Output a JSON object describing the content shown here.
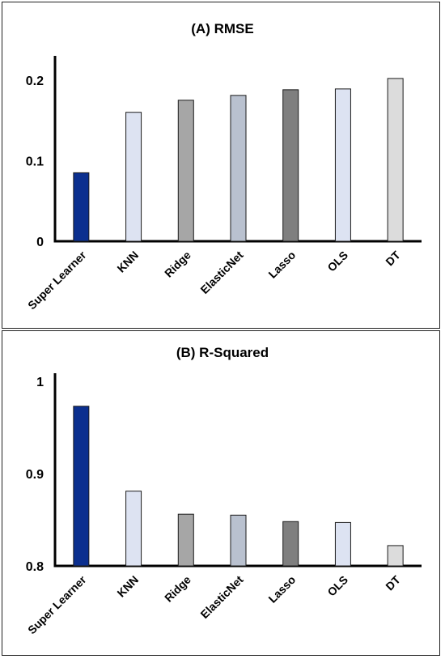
{
  "chart_data": [
    {
      "type": "bar",
      "title": "(A) RMSE",
      "categories": [
        "Super Learner",
        "KNN",
        "Ridge",
        "ElasticNet",
        "Lasso",
        "OLS",
        "DT"
      ],
      "values": [
        0.085,
        0.16,
        0.175,
        0.181,
        0.188,
        0.189,
        0.202
      ],
      "ylim": [
        0,
        0.22
      ],
      "yticks": [
        "0",
        "0.1",
        "0.2"
      ],
      "ytick_values": [
        0,
        0.1,
        0.2
      ],
      "colors": [
        "#0b2f8f",
        "#dde3f2",
        "#a6a6a6",
        "#b9c1cf",
        "#7f7f7f",
        "#dde3f2",
        "#dcdcdc"
      ],
      "grid": false,
      "legend": "none"
    },
    {
      "type": "bar",
      "title": "(B) R-Squared",
      "categories": [
        "Super Learner",
        "KNN",
        "Ridge",
        "ElasticNet",
        "Lasso",
        "OLS",
        "DT"
      ],
      "values": [
        0.973,
        0.881,
        0.856,
        0.855,
        0.848,
        0.847,
        0.822
      ],
      "ylim": [
        0.8,
        1.0
      ],
      "yticks": [
        "0.8",
        "0.9",
        "1"
      ],
      "ytick_values": [
        0.8,
        0.9,
        1.0
      ],
      "colors": [
        "#0b2f8f",
        "#dde3f2",
        "#a6a6a6",
        "#b9c1cf",
        "#7f7f7f",
        "#dde3f2",
        "#dcdcdc"
      ],
      "grid": false,
      "legend": "none"
    }
  ]
}
